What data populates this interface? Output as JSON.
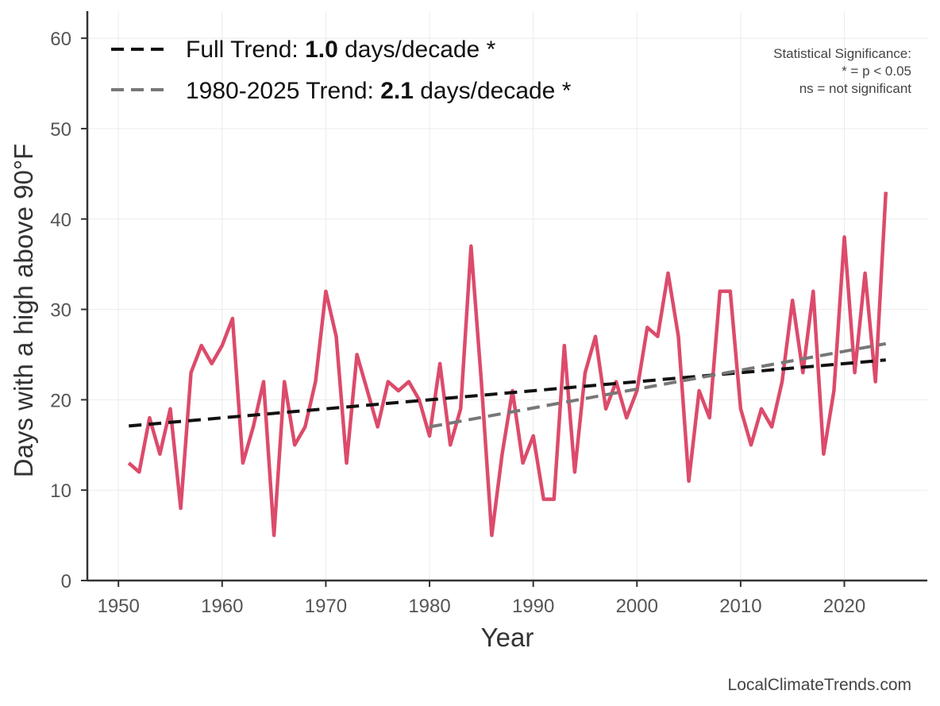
{
  "chart_data": {
    "type": "line",
    "xlabel": "Year",
    "ylabel": "Days with a high above 90°F",
    "xlim": [
      1947,
      2028
    ],
    "ylim": [
      0,
      63
    ],
    "xticks": [
      1950,
      1960,
      1970,
      1980,
      1990,
      2000,
      2010,
      2020
    ],
    "yticks": [
      0,
      10,
      20,
      30,
      40,
      50,
      60
    ],
    "grid": true,
    "series": [
      {
        "name": "Days above 90°F",
        "color": "#dc4b6b",
        "x": [
          1951,
          1952,
          1953,
          1954,
          1955,
          1956,
          1957,
          1958,
          1959,
          1960,
          1961,
          1962,
          1963,
          1964,
          1965,
          1966,
          1967,
          1968,
          1969,
          1970,
          1971,
          1972,
          1973,
          1974,
          1975,
          1976,
          1977,
          1978,
          1979,
          1980,
          1981,
          1982,
          1983,
          1984,
          1985,
          1986,
          1987,
          1988,
          1989,
          1990,
          1991,
          1992,
          1993,
          1994,
          1995,
          1996,
          1997,
          1998,
          1999,
          2000,
          2001,
          2002,
          2003,
          2004,
          2005,
          2006,
          2007,
          2008,
          2009,
          2010,
          2011,
          2012,
          2013,
          2014,
          2015,
          2016,
          2017,
          2018,
          2019,
          2020,
          2021,
          2022,
          2023,
          2024
        ],
        "values": [
          13,
          12,
          18,
          14,
          19,
          8,
          23,
          26,
          24,
          26,
          29,
          13,
          17,
          22,
          5,
          22,
          15,
          17,
          22,
          32,
          27,
          13,
          25,
          21,
          17,
          22,
          21,
          22,
          20,
          16,
          24,
          15,
          19,
          37,
          22,
          5,
          14,
          21,
          13,
          16,
          9,
          9,
          26,
          12,
          23,
          27,
          19,
          22,
          18,
          21,
          28,
          27,
          34,
          27,
          11,
          21,
          18,
          32,
          32,
          19,
          15,
          19,
          17,
          22,
          31,
          23,
          32,
          14,
          21,
          38,
          23,
          34,
          22,
          43
        ]
      }
    ],
    "trends": [
      {
        "name": "Full Trend",
        "x": [
          1951,
          2024
        ],
        "values": [
          17.1,
          24.4
        ],
        "color": "#111111",
        "label_prefix": "Full Trend: ",
        "label_value": "1.0",
        "label_suffix": " days/decade *"
      },
      {
        "name": "1980-2025 Trend",
        "x": [
          1980,
          2024
        ],
        "values": [
          17.0,
          26.2
        ],
        "color": "#777777",
        "label_prefix": "1980-2025 Trend: ",
        "label_value": "2.1",
        "label_suffix": " days/decade *"
      }
    ],
    "legend_position": "top-left",
    "significance_note": [
      "Statistical Significance:",
      "* = p < 0.05",
      "ns = not significant"
    ],
    "source": "LocalClimateTrends.com"
  }
}
